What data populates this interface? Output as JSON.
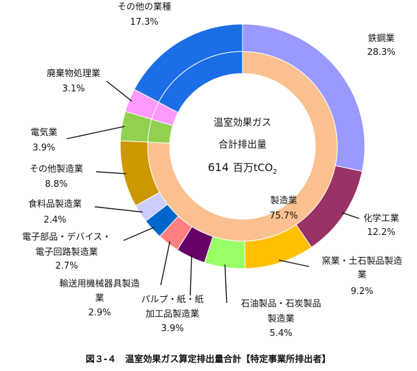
{
  "chart_data": {
    "type": "pie",
    "style": "donut",
    "total_label_lines": [
      "温室効果ガス",
      "合計排出量"
    ],
    "total_value": "614",
    "total_unit": "百万tCO",
    "total_unit_sub": "2",
    "caption": "図３-４　温室効果ガス算定排出量合計【特定事業所排出者】",
    "outer_ring": [
      {
        "name": "鉄鋼業",
        "value_text": "28.3%",
        "value": 28.3,
        "color": "#9999ff"
      },
      {
        "name": "化学工業",
        "value_text": "12.2%",
        "value": 12.2,
        "color": "#993366"
      },
      {
        "name": "窯業・土石製品製造業",
        "value_text": "9.2%",
        "value": 9.2,
        "color": "#ffc000"
      },
      {
        "name": "石油製品・石炭製品製造業",
        "value_text": "5.4%",
        "value": 5.4,
        "color": "#99ff66"
      },
      {
        "name": "パルプ・紙・紙加工品製造業",
        "value_text": "3.9%",
        "value": 3.9,
        "color": "#660066"
      },
      {
        "name": "輸送用機械器具製造業",
        "value_text": "2.9%",
        "value": 2.9,
        "color": "#ff8080"
      },
      {
        "name": "電子部品・デバイス・電子回路製造業",
        "value_text": "2.7%",
        "value": 2.7,
        "color": "#0066cc"
      },
      {
        "name": "食料品製造業",
        "value_text": "2.4%",
        "value": 2.4,
        "color": "#ccccff"
      },
      {
        "name": "その他製造業",
        "value_text": "8.8%",
        "value": 8.8,
        "color": "#cc9900"
      },
      {
        "name": "電気業",
        "value_text": "3.9%",
        "value": 3.9,
        "color": "#92d050"
      },
      {
        "name": "廃棄物処理業",
        "value_text": "3.1%",
        "value": 3.1,
        "color": "#ff99ff"
      },
      {
        "name": "その他の業種",
        "value_text": "17.3%",
        "value": 17.3,
        "color": "#1b6ee6"
      }
    ],
    "inner_ring": [
      {
        "name": "製造業",
        "value_text": "75.7%",
        "value": 75.7,
        "color": "#fac090"
      },
      {
        "name": "電気業",
        "value": 3.9,
        "color": "#92d050"
      },
      {
        "name": "廃棄物処理業",
        "value": 3.1,
        "color": "#ff99ff"
      },
      {
        "name": "その他の業種",
        "value": 17.3,
        "color": "#1b6ee6"
      }
    ]
  }
}
